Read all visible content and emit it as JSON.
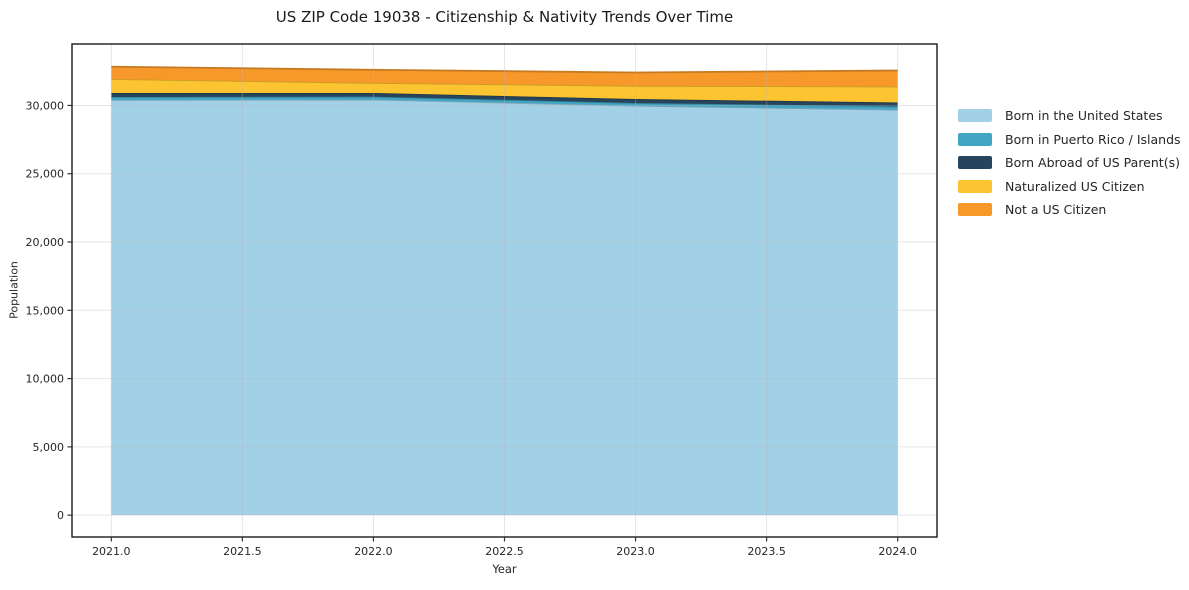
{
  "page": {
    "background": "#ffffff"
  },
  "chart_data": {
    "type": "area",
    "stacked": true,
    "title": "US ZIP Code 19038 - Citizenship & Nativity Trends Over Time",
    "xlabel": "Year",
    "ylabel": "Population",
    "x": [
      2021,
      2022,
      2023,
      2024
    ],
    "series": [
      {
        "name": "Born in the United States",
        "color": "#a2d0e7",
        "values": [
          30400,
          30430,
          29980,
          29690
        ]
      },
      {
        "name": "Born in Puerto Rico / Islands",
        "color": "#41a7c5",
        "values": [
          220,
          215,
          200,
          240
        ]
      },
      {
        "name": "Born Abroad of US Parent(s)",
        "color": "#26455c",
        "values": [
          290,
          270,
          290,
          290
        ]
      },
      {
        "name": "Naturalized US Citizen",
        "color": "#fcc430",
        "values": [
          1030,
          735,
          970,
          1170
        ]
      },
      {
        "name": "Not a US Citizen",
        "color": "#f7982a",
        "values": [
          900,
          960,
          975,
          1170
        ]
      }
    ],
    "totals": [
      32840,
      32610,
      32415,
      32560
    ],
    "xlim": [
      2020.85,
      2024.15
    ],
    "ylim": [
      -1600,
      34500
    ],
    "xticks": {
      "values": [
        2021.0,
        2021.5,
        2022.0,
        2022.5,
        2023.0,
        2023.5,
        2024.0
      ],
      "labels": [
        "2021.0",
        "2021.5",
        "2022.0",
        "2022.5",
        "2023.0",
        "2023.5",
        "2024.0"
      ]
    },
    "yticks": {
      "values": [
        0,
        5000,
        10000,
        15000,
        20000,
        25000,
        30000
      ],
      "labels": [
        "0",
        "5,000",
        "10,000",
        "15,000",
        "20,000",
        "25,000",
        "30,000"
      ]
    },
    "grid": true,
    "legend_position": "right outside"
  },
  "style": {
    "grid_color": "#b8b8b8",
    "grid_opacity": 0.35,
    "frame_color": "#1a1a1a",
    "tick_color": "#333333",
    "text_color": "#262626"
  }
}
